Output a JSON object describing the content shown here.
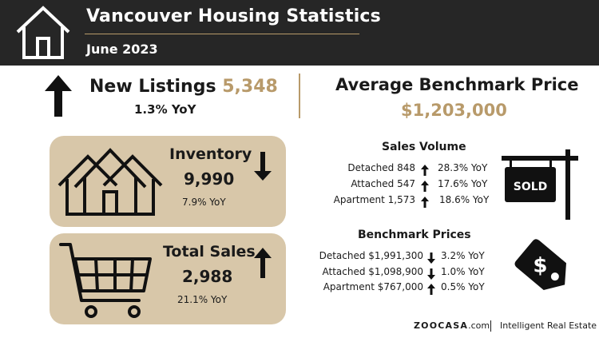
{
  "header": {
    "title": "Vancouver Housing Statistics",
    "subtitle": "June 2023",
    "icon": "house-outline-icon"
  },
  "new_listings": {
    "label": "New Listings",
    "value": "5,348",
    "yoy": "1.3% YoY",
    "trend": "up"
  },
  "average_benchmark": {
    "label": "Average Benchmark Price",
    "value": "$1,203,000"
  },
  "inventory": {
    "label": "Inventory",
    "value": "9,990",
    "yoy": "7.9% YoY",
    "trend": "down",
    "icon": "houses-icon"
  },
  "total_sales": {
    "label": "Total Sales",
    "value": "2,988",
    "yoy": "21.1% YoY",
    "trend": "up",
    "icon": "shopping-cart-icon"
  },
  "sales_volume": {
    "title": "Sales Volume",
    "rows": [
      {
        "label": "Detached 848",
        "pct": "28.3% YoY",
        "trend": "up"
      },
      {
        "label": "Attached 547",
        "pct": "17.6% YoY",
        "trend": "up"
      },
      {
        "label": "Apartment 1,573",
        "pct": "18.6% YoY",
        "trend": "up"
      }
    ],
    "icon": "sold-sign-icon",
    "sign_text": "SOLD"
  },
  "benchmark_prices": {
    "title": "Benchmark Prices",
    "rows": [
      {
        "label": "Detached $1,991,300",
        "pct": "3.2% YoY",
        "trend": "down"
      },
      {
        "label": "Attached $1,098,900",
        "pct": "1.0% YoY",
        "trend": "down"
      },
      {
        "label": "Apartment $767,000",
        "pct": "0.5% YoY",
        "trend": "up"
      }
    ],
    "icon": "price-tag-icon"
  },
  "footer": {
    "brand": "ZOOCASA",
    "brand_suffix": ".com",
    "tagline": "Intelligent Real Estate"
  },
  "colors": {
    "header_bg": "#262626",
    "accent_gold": "#b89a6a",
    "card_bg": "#d8c7a9",
    "text": "#1a1a1a"
  }
}
